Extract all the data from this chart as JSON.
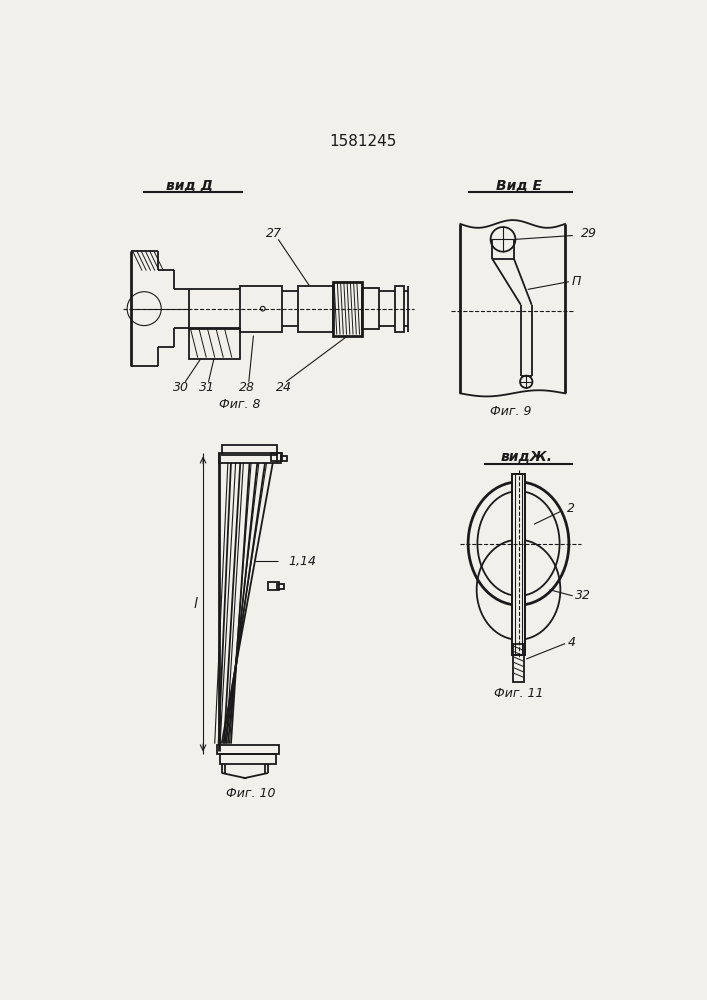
{
  "title": "1581245",
  "bg_color": "#f2f0eb",
  "lc": "#1a1a1a",
  "fig8_label": "вид Д",
  "fig8_caption": "Фиг. 8",
  "fig9_label": "Вид Е",
  "fig9_caption": "Фиг. 9",
  "fig10_caption": "Фиг. 10",
  "fig11_label": "видЖ.",
  "fig11_caption": "Фиг. 11"
}
